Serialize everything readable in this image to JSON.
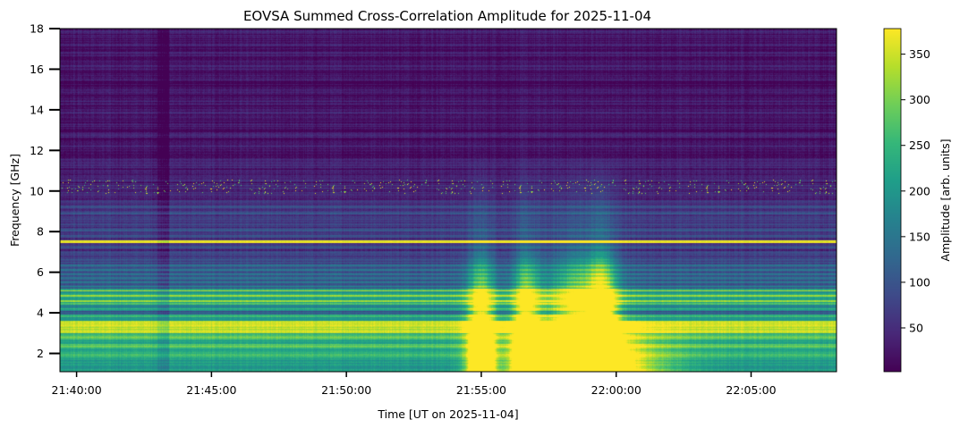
{
  "chart_data": {
    "type": "heatmap",
    "title": "EOVSA Summed Cross-Correlation Amplitude for 2025-11-04",
    "xlabel": "Time [UT on 2025-11-04]",
    "ylabel": "Frequency [GHz]",
    "colorbar_label": "Amplitude [arb. units]",
    "colormap": "viridis",
    "colormap_stops": [
      "#440154",
      "#482878",
      "#3e4a89",
      "#31688e",
      "#26828e",
      "#1f9e89",
      "#35b779",
      "#6ece58",
      "#b5de2b",
      "#fde725"
    ],
    "x_start": "21:39:23",
    "x_end": "22:08:10",
    "x_ticks": [
      "21:40:00",
      "21:45:00",
      "21:50:00",
      "21:55:00",
      "22:00:00",
      "22:05:00"
    ],
    "ylim": [
      1.1,
      18
    ],
    "y_ticks": [
      2,
      4,
      6,
      8,
      10,
      12,
      14,
      16,
      18
    ],
    "clim": [
      2,
      378
    ],
    "colorbar_ticks": [
      50,
      100,
      150,
      200,
      250,
      300,
      350
    ],
    "bright_line_frequency": 7.5,
    "burst_peaks": [
      "21:55:00",
      "21:56:40",
      "21:58:40",
      "21:59:30"
    ],
    "rfi_band_frequency": 10.2
  }
}
